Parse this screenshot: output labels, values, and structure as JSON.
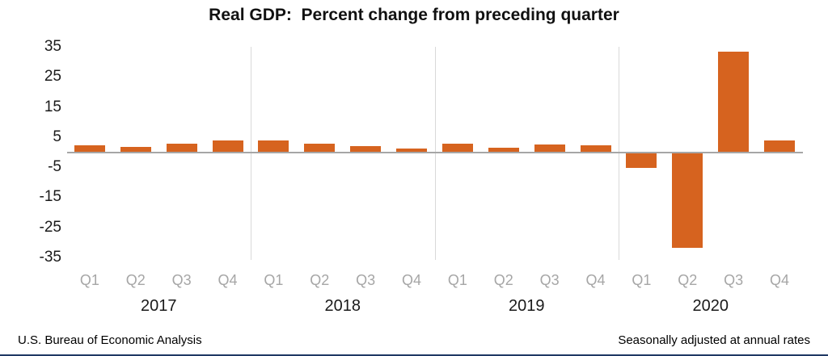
{
  "title": "Real GDP:  Percent change from preceding quarter",
  "footer": {
    "left": "U.S. Bureau of Economic Analysis",
    "right": "Seasonally adjusted at annual rates"
  },
  "colors": {
    "bar": "#d6631f",
    "bottom_rule": "#1f3864"
  },
  "chart_data": {
    "type": "bar",
    "title": "Real GDP:  Percent change from preceding quarter",
    "xlabel": "",
    "ylabel": "",
    "ylim": [
      -35,
      35
    ],
    "yticks": [
      35,
      25,
      15,
      5,
      -5,
      -15,
      -25,
      -35
    ],
    "grid": "vertical-year-separators",
    "legend": "none",
    "groups": [
      {
        "year": "2017",
        "quarters": [
          "Q1",
          "Q2",
          "Q3",
          "Q4"
        ],
        "values": [
          2.3,
          1.7,
          2.9,
          3.9
        ]
      },
      {
        "year": "2018",
        "quarters": [
          "Q1",
          "Q2",
          "Q3",
          "Q4"
        ],
        "values": [
          3.8,
          2.7,
          2.1,
          1.3
        ]
      },
      {
        "year": "2019",
        "quarters": [
          "Q1",
          "Q2",
          "Q3",
          "Q4"
        ],
        "values": [
          2.9,
          1.5,
          2.6,
          2.4
        ]
      },
      {
        "year": "2020",
        "quarters": [
          "Q1",
          "Q2",
          "Q3",
          "Q4"
        ],
        "values": [
          -5.0,
          -31.4,
          33.4,
          4.0
        ]
      }
    ]
  }
}
